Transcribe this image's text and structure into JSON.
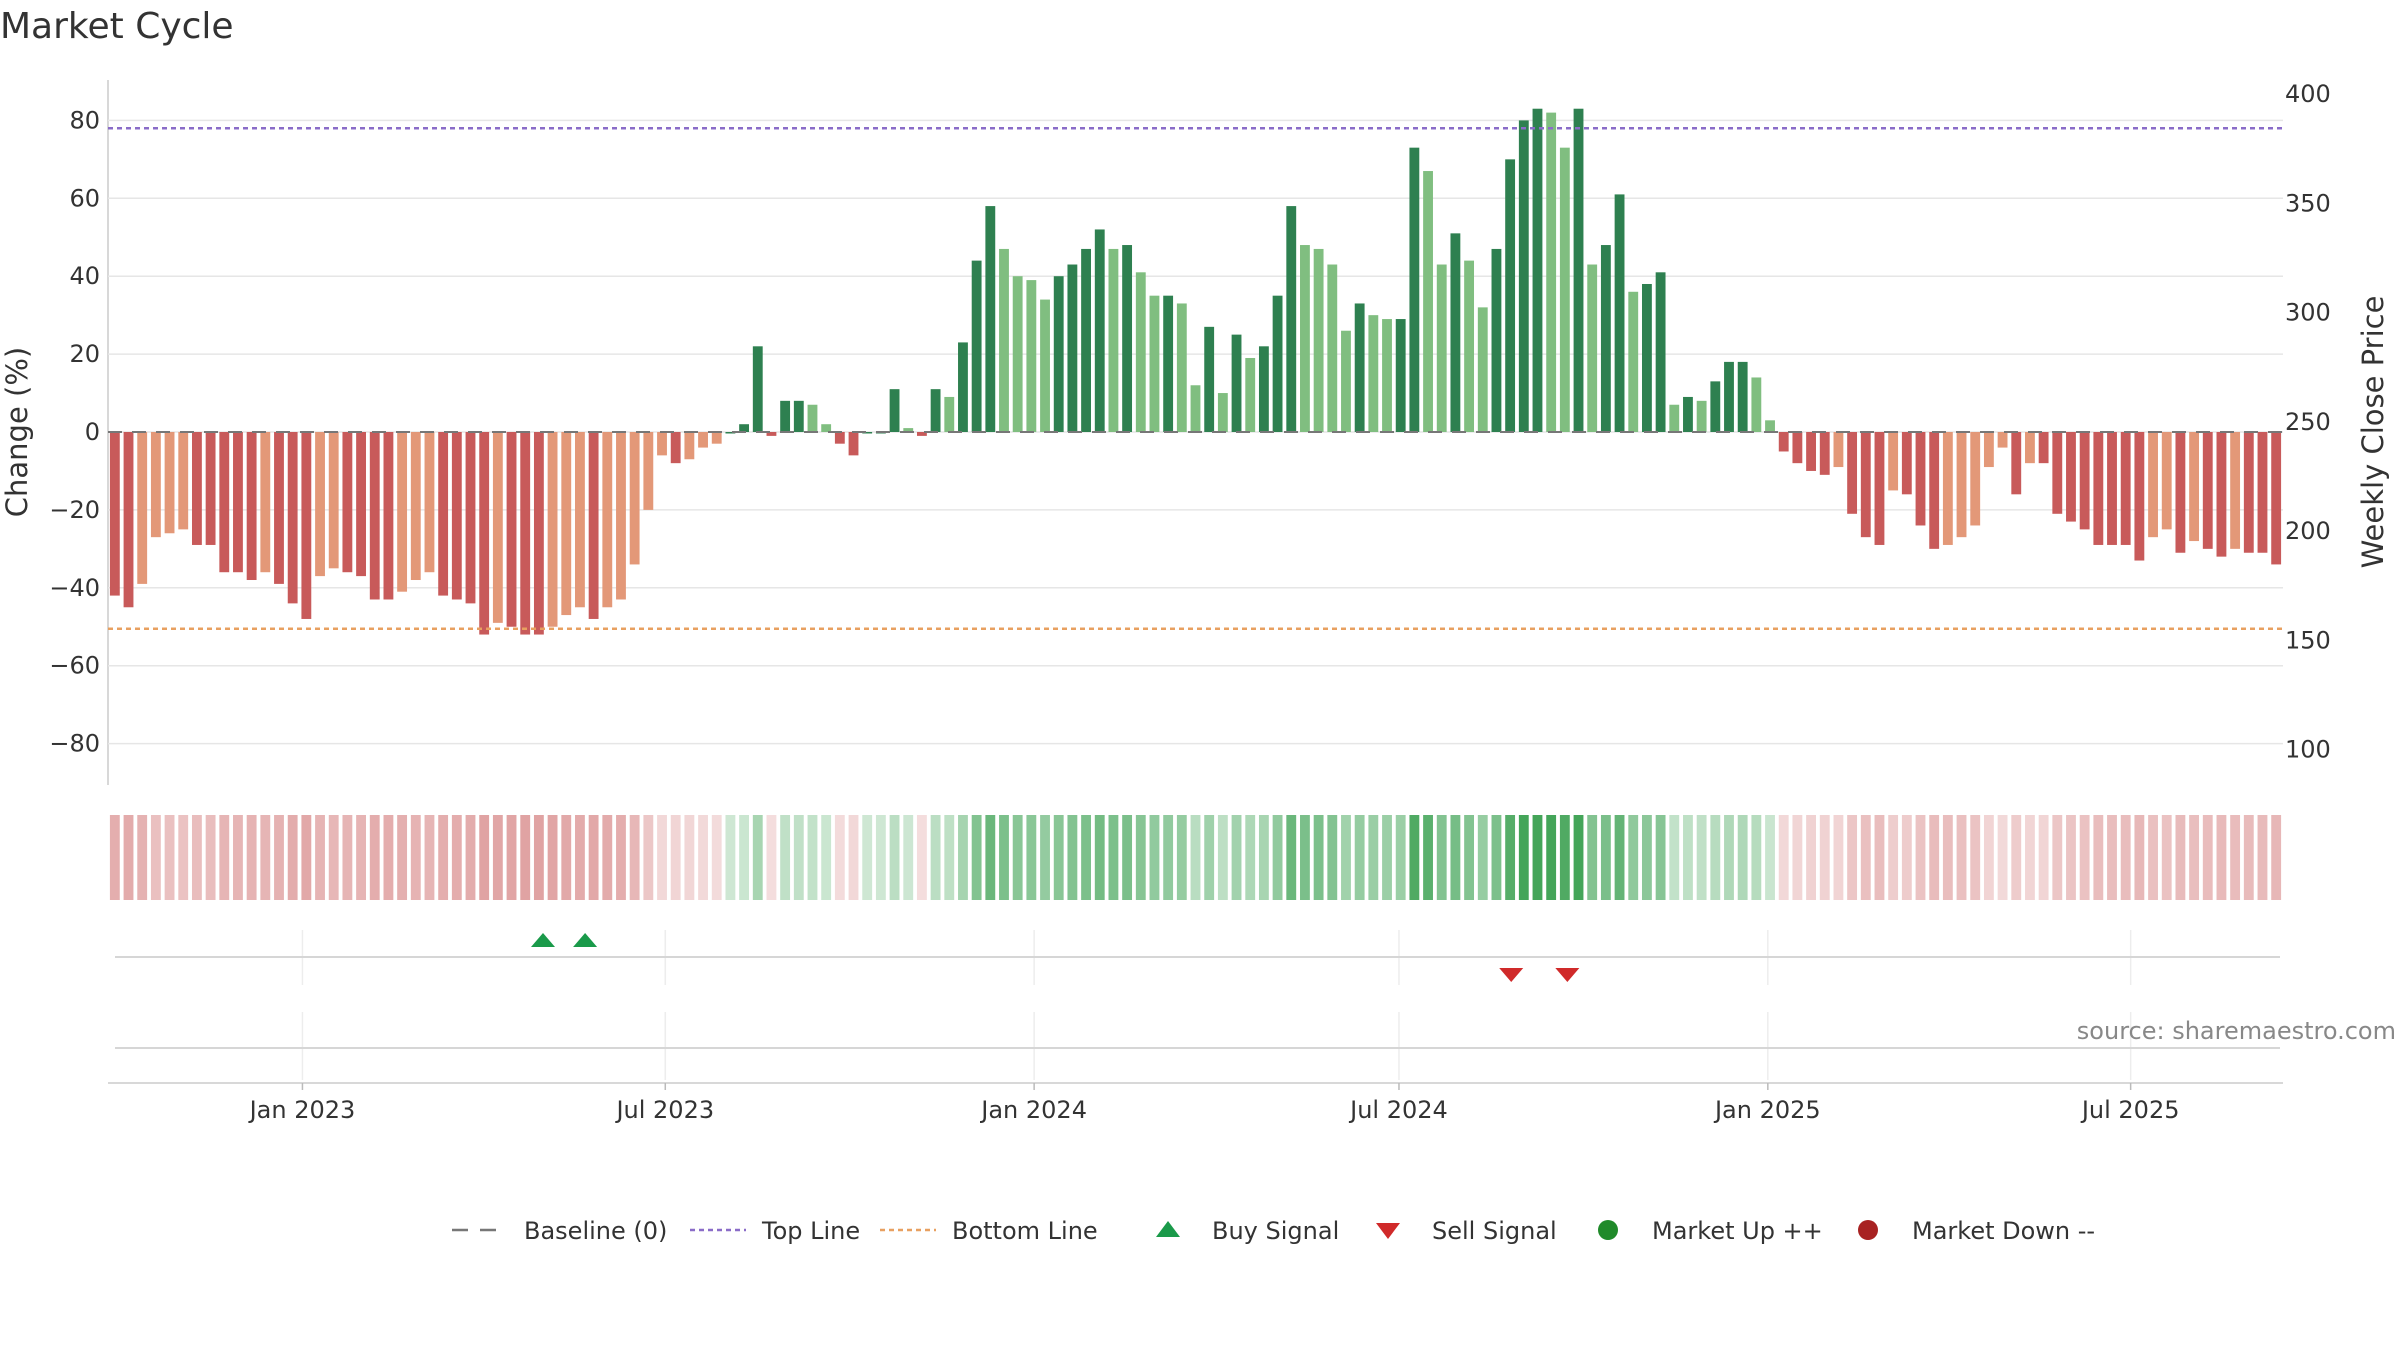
{
  "chart_data": {
    "type": "bar",
    "title": "Market Cycle",
    "ylabel": "Change (%)",
    "y2label": "Weekly Close Price",
    "ylim": [
      -90,
      90
    ],
    "yticks": [
      80,
      60,
      40,
      20,
      0,
      -20,
      -40,
      -60,
      -80
    ],
    "ytick_labels": [
      "80",
      "60",
      "40",
      "20",
      "0",
      "−20",
      "−40",
      "−60",
      "−80"
    ],
    "y2lim": [
      85,
      405
    ],
    "y2ticks": [
      "400",
      "350",
      "300",
      "250",
      "200",
      "150",
      "100"
    ],
    "x_start": "2022-09-26",
    "x_end": "2025-09-15",
    "xticks": [
      {
        "date": "2023-01-01",
        "label": "Jan 2023"
      },
      {
        "date": "2023-07-01",
        "label": "Jul 2023"
      },
      {
        "date": "2024-01-01",
        "label": "Jan 2024"
      },
      {
        "date": "2024-07-01",
        "label": "Jul 2024"
      },
      {
        "date": "2025-01-01",
        "label": "Jan 2025"
      },
      {
        "date": "2025-07-01",
        "label": "Jul 2025"
      }
    ],
    "top_line": 78,
    "bottom_line": -50.5,
    "baseline": 0,
    "weekly_change": [
      -42,
      -45,
      -39,
      -27,
      -26,
      -25,
      -29,
      -29,
      -36,
      -36,
      -38,
      -36,
      -39,
      -44,
      -48,
      -37,
      -35,
      -36,
      -37,
      -43,
      -43,
      -41,
      -38,
      -36,
      -42,
      -43,
      -44,
      -52,
      -49,
      -50,
      -52,
      -52,
      -50,
      -47,
      -45,
      -48,
      -45,
      -43,
      -34,
      -20,
      -6,
      -8,
      -7,
      -4,
      -3,
      0,
      2,
      22,
      -1,
      8,
      8,
      7,
      2,
      -3,
      -6,
      0,
      0,
      11,
      1,
      -1,
      11,
      9,
      23,
      44,
      58,
      47,
      40,
      39,
      34,
      40,
      43,
      47,
      52,
      47,
      48,
      41,
      35,
      35,
      33,
      12,
      27,
      10,
      25,
      19,
      22,
      35,
      58,
      48,
      47,
      43,
      26,
      33,
      30,
      29,
      29,
      73,
      67,
      43,
      51,
      44,
      32,
      47,
      70,
      80,
      83,
      82,
      73,
      83,
      43,
      48,
      61,
      36,
      38,
      41,
      7,
      9,
      8,
      13,
      18,
      18,
      14,
      3,
      -5,
      -8,
      -10,
      -11,
      -9,
      -21,
      -27,
      -29,
      -15,
      -16,
      -24,
      -30,
      -29,
      -27,
      -24,
      -9,
      -4,
      -16,
      -8,
      -8,
      -21,
      -23,
      -25,
      -29,
      -29,
      -29,
      -33,
      -27,
      -25,
      -31,
      -28,
      -30,
      -32,
      -30,
      -31,
      -31,
      -34
    ],
    "signals": [
      {
        "type": "buy",
        "date": "2023-05-01"
      },
      {
        "type": "buy",
        "date": "2023-05-22"
      },
      {
        "type": "sell",
        "date": "2024-08-26"
      },
      {
        "type": "sell",
        "date": "2024-09-23"
      }
    ],
    "legend": [
      {
        "key": "baseline",
        "label": "Baseline (0)"
      },
      {
        "key": "top",
        "label": "Top Line"
      },
      {
        "key": "bottom",
        "label": "Bottom Line"
      },
      {
        "key": "buy",
        "label": "Buy Signal"
      },
      {
        "key": "sell",
        "label": "Sell Signal"
      },
      {
        "key": "up",
        "label": "Market Up ++"
      },
      {
        "key": "down",
        "label": "Market Down --"
      }
    ],
    "legend_placement": "bottom-center",
    "grid": true
  },
  "source": "source: sharemaestro.com",
  "colors": {
    "up_strong": "#2e8050",
    "up_light": "#80be80",
    "down_strong": "#c85a5a",
    "down_light": "#e39878",
    "top_line": "#8a6cc8",
    "bottom_line": "#e8a060",
    "buy": "#1a9a4a",
    "sell": "#d02a2a",
    "market_up": "#208a2a",
    "market_down": "#a82222",
    "baseline": "#777777"
  }
}
